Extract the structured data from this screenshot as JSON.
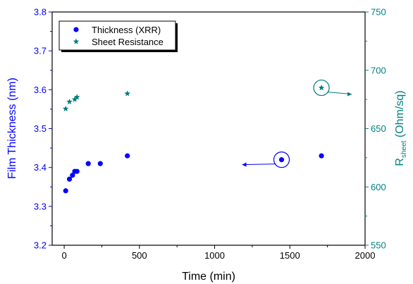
{
  "chart_data": {
    "type": "scatter",
    "xlabel": "Time (min)",
    "ylabel_left": "Film Thickness (nm)",
    "ylabel_right_main": "R",
    "ylabel_right_sub": "sheet",
    "ylabel_right_unit": " (Ohm/sq)",
    "x_range": [
      -80,
      2000
    ],
    "y_left_range": [
      3.2,
      3.8
    ],
    "y_right_range": [
      550,
      750
    ],
    "x_ticks": [
      0,
      500,
      1000,
      1500,
      2000
    ],
    "x_tick_labels": [
      "0",
      "500",
      "1000",
      "1500",
      "2000"
    ],
    "y_left_ticks": [
      3.2,
      3.3,
      3.4,
      3.5,
      3.6,
      3.7,
      3.8
    ],
    "y_left_tick_labels": [
      "3.2",
      "3.3",
      "3.4",
      "3.5",
      "3.6",
      "3.7",
      "3.8"
    ],
    "y_right_ticks": [
      550,
      600,
      650,
      700,
      750
    ],
    "y_right_tick_labels": [
      "550",
      "600",
      "650",
      "700",
      "750"
    ],
    "legend_position": "top-left",
    "series": [
      {
        "name": "Thickness (XRR)",
        "axis": "left",
        "marker": "circle",
        "color": "#0000ff",
        "x": [
          10,
          35,
          55,
          70,
          85,
          160,
          240,
          420,
          1445,
          1710
        ],
        "y": [
          3.34,
          3.37,
          3.38,
          3.39,
          3.39,
          3.41,
          3.41,
          3.43,
          3.42,
          3.43
        ]
      },
      {
        "name": "Sheet Resistance",
        "axis": "right",
        "marker": "star",
        "color": "#007b7b",
        "x": [
          10,
          35,
          70,
          85,
          420,
          1710
        ],
        "y": [
          667,
          673,
          675,
          677,
          680,
          685
        ]
      }
    ],
    "annotations": [
      {
        "series": "Thickness (XRR)",
        "x": 1445,
        "y": 3.42,
        "arrow": "left",
        "color": "#0000ff"
      },
      {
        "series": "Sheet Resistance",
        "x": 1710,
        "y": 685,
        "arrow": "right",
        "color": "#007b7b"
      }
    ],
    "colors": {
      "left_axis": "#0000ff",
      "right_axis": "#008080",
      "frame": "#000000"
    }
  }
}
